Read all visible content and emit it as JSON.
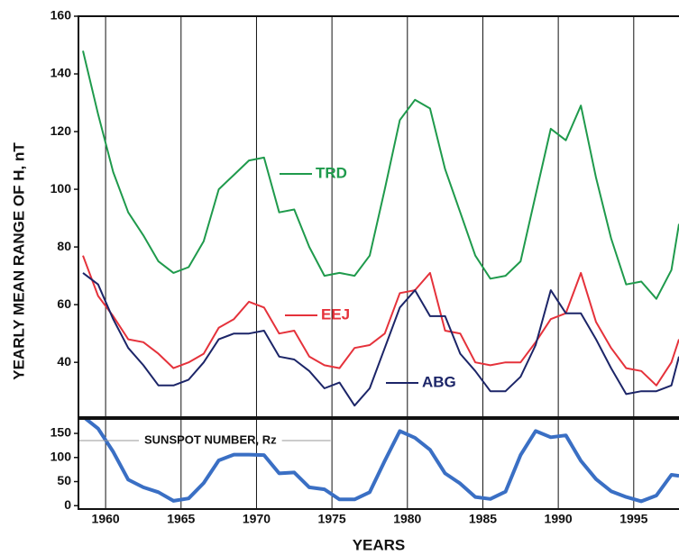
{
  "chart_data": [
    {
      "type": "line",
      "y_label": "YEARLY MEAN RANGE OF H, nT",
      "xlim": [
        1958.2,
        1998
      ],
      "ylim": [
        21,
        160
      ],
      "xticks": [
        1960,
        1965,
        1970,
        1975,
        1980,
        1985,
        1990,
        1995
      ],
      "yticks": [
        40,
        60,
        80,
        100,
        120,
        140,
        160
      ],
      "grid": true,
      "x": [
        1958.5,
        1959.5,
        1960.5,
        1961.5,
        1962.5,
        1963.5,
        1964.5,
        1965.5,
        1966.5,
        1967.5,
        1968.5,
        1969.5,
        1970.5,
        1971.5,
        1972.5,
        1973.5,
        1974.5,
        1975.5,
        1976.5,
        1977.5,
        1978.5,
        1979.5,
        1980.5,
        1981.5,
        1982.5,
        1983.5,
        1984.5,
        1985.5,
        1986.5,
        1987.5,
        1988.5,
        1989.5,
        1990.5,
        1991.5,
        1992.5,
        1993.5,
        1994.5,
        1995.5,
        1996.5,
        1997.5,
        1998
      ],
      "series": [
        {
          "name": "TRD",
          "color": "#1f9a4c",
          "values": [
            148,
            126,
            106,
            92,
            84,
            75,
            71,
            73,
            82,
            100,
            105,
            110,
            111,
            92,
            93,
            80,
            70,
            71,
            70,
            77,
            100,
            124,
            131,
            128,
            107,
            92,
            77,
            69,
            70,
            75,
            98,
            121,
            117,
            129,
            104,
            83,
            67,
            68,
            62,
            72,
            88
          ]
        },
        {
          "name": "EEJ",
          "color": "#e5323b",
          "values": [
            77,
            63,
            56,
            48,
            47,
            43,
            38,
            40,
            43,
            52,
            55,
            61,
            59,
            50,
            51,
            42,
            39,
            38,
            45,
            46,
            50,
            64,
            65,
            71,
            51,
            50,
            40,
            39,
            40,
            40,
            47,
            55,
            57,
            71,
            54,
            45,
            38,
            37,
            32,
            40,
            48
          ]
        },
        {
          "name": "ABG",
          "color": "#1c2568",
          "values": [
            71,
            67,
            55,
            45,
            39,
            32,
            32,
            34,
            40,
            48,
            50,
            50,
            51,
            42,
            41,
            37,
            31,
            33,
            25,
            31,
            45,
            59,
            65,
            56,
            56,
            43,
            37,
            30,
            30,
            35,
            46,
            65,
            57,
            57,
            48,
            38,
            29,
            30,
            30,
            32,
            42
          ]
        }
      ]
    },
    {
      "type": "line",
      "x_label": "YEARS",
      "xlim": [
        1958.2,
        1998
      ],
      "ylim": [
        -7,
        180
      ],
      "xticks": [
        1960,
        1965,
        1970,
        1975,
        1980,
        1985,
        1990,
        1995
      ],
      "yticks": [
        0,
        50,
        100,
        150
      ],
      "grid": true,
      "x": [
        1958.5,
        1959.5,
        1960.5,
        1961.5,
        1962.5,
        1963.5,
        1964.5,
        1965.5,
        1966.5,
        1967.5,
        1968.5,
        1969.5,
        1970.5,
        1971.5,
        1972.5,
        1973.5,
        1974.5,
        1975.5,
        1976.5,
        1977.5,
        1978.5,
        1979.5,
        1980.5,
        1981.5,
        1982.5,
        1983.5,
        1984.5,
        1985.5,
        1986.5,
        1987.5,
        1988.5,
        1989.5,
        1990.5,
        1991.5,
        1992.5,
        1993.5,
        1994.5,
        1995.5,
        1996.5,
        1997.5,
        1998
      ],
      "series": [
        {
          "name": "SUNSPOT NUMBER, Rz",
          "color": "#3a6fc4",
          "values": [
            185,
            160,
            112,
            54,
            38,
            28,
            10,
            15,
            47,
            94,
            106,
            106,
            105,
            67,
            69,
            38,
            34,
            13,
            13,
            28,
            93,
            155,
            141,
            116,
            67,
            46,
            18,
            14,
            29,
            105,
            155,
            142,
            146,
            93,
            55,
            30,
            18,
            9,
            21,
            64,
            62
          ]
        }
      ]
    }
  ]
}
